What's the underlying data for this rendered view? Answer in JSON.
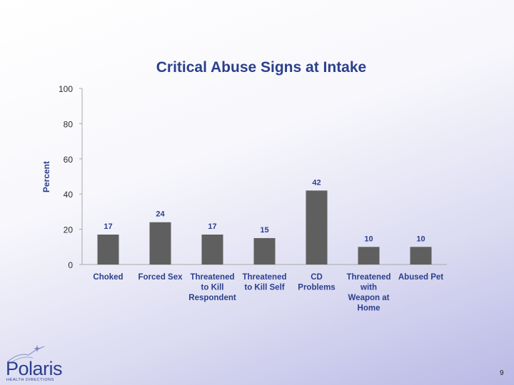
{
  "chart_data": {
    "type": "bar",
    "title": "Critical Abuse Signs at Intake",
    "ylabel": "Percent",
    "xlabel": "",
    "ylim": [
      0,
      100
    ],
    "yticks": [
      0,
      20,
      40,
      60,
      80,
      100
    ],
    "categories": [
      [
        "Choked"
      ],
      [
        "Forced Sex"
      ],
      [
        "Threatened",
        "to Kill",
        "Respondent"
      ],
      [
        "Threatened",
        "to Kill Self"
      ],
      [
        "CD",
        "Problems"
      ],
      [
        "Threatened",
        "with",
        "Weapon at",
        "Home"
      ],
      [
        "Abused Pet"
      ]
    ],
    "values": [
      17,
      24,
      17,
      15,
      42,
      10,
      10
    ],
    "data_labels": [
      "17",
      "24",
      "17",
      "15",
      "42",
      "10",
      "10"
    ],
    "bar_color": "#5f5f5f",
    "grid": false,
    "legend": "none"
  },
  "logo": {
    "name": "Polaris",
    "tagline": "HEALTH DIRECTIONS",
    "color": "#2b3f8c"
  },
  "page_number": "9"
}
